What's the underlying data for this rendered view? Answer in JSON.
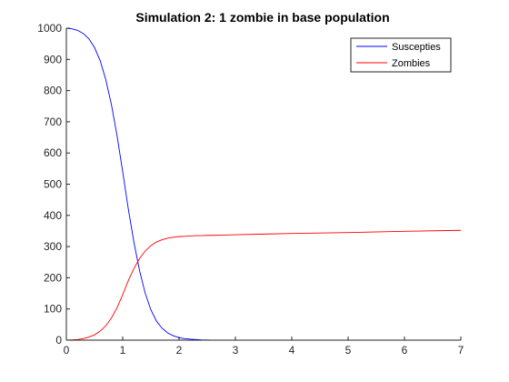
{
  "chart_data": {
    "type": "line",
    "title": "Simulation 2: 1 zombie in base population",
    "xlabel": "",
    "ylabel": "",
    "xlim": [
      0,
      7
    ],
    "ylim": [
      0,
      1000
    ],
    "x_ticks": [
      0,
      1,
      2,
      3,
      4,
      5,
      6,
      7
    ],
    "y_ticks": [
      0,
      100,
      200,
      300,
      400,
      500,
      600,
      700,
      800,
      900,
      1000
    ],
    "grid": false,
    "legend": {
      "position": "top-right"
    },
    "series": [
      {
        "name": "Suscepties",
        "color": "#0000ff",
        "x": [
          0,
          0.1,
          0.2,
          0.3,
          0.4,
          0.5,
          0.6,
          0.7,
          0.8,
          0.9,
          1.0,
          1.1,
          1.2,
          1.3,
          1.4,
          1.5,
          1.6,
          1.7,
          1.8,
          1.9,
          2.0,
          2.1,
          2.2,
          2.3,
          2.4,
          2.5,
          2.6,
          2.8,
          3.0,
          3.5,
          4.0,
          5.0,
          6.0,
          7.0
        ],
        "y": [
          1000,
          998,
          993,
          983,
          966,
          938,
          896,
          835,
          755,
          655,
          540,
          420,
          313,
          222,
          150,
          97,
          61,
          38,
          23,
          14,
          8,
          5,
          3,
          2,
          1,
          0.6,
          0.3,
          0.1,
          0,
          0,
          0,
          0,
          0,
          0
        ]
      },
      {
        "name": "Zombies",
        "color": "#ff0000",
        "x": [
          0,
          0.1,
          0.2,
          0.3,
          0.4,
          0.5,
          0.6,
          0.7,
          0.8,
          0.9,
          1.0,
          1.1,
          1.2,
          1.3,
          1.4,
          1.5,
          1.6,
          1.7,
          1.8,
          1.9,
          2.0,
          2.1,
          2.2,
          2.3,
          2.4,
          2.5,
          2.6,
          2.8,
          3.0,
          3.5,
          4.0,
          5.0,
          6.0,
          7.0
        ],
        "y": [
          0,
          1,
          2,
          5,
          10,
          17,
          29,
          46,
          71,
          104,
          146,
          191,
          230,
          262,
          286,
          303,
          315,
          322,
          327,
          330,
          332,
          333,
          334,
          335,
          335,
          336,
          336,
          337,
          338,
          340,
          342,
          345,
          349,
          352
        ]
      }
    ]
  }
}
